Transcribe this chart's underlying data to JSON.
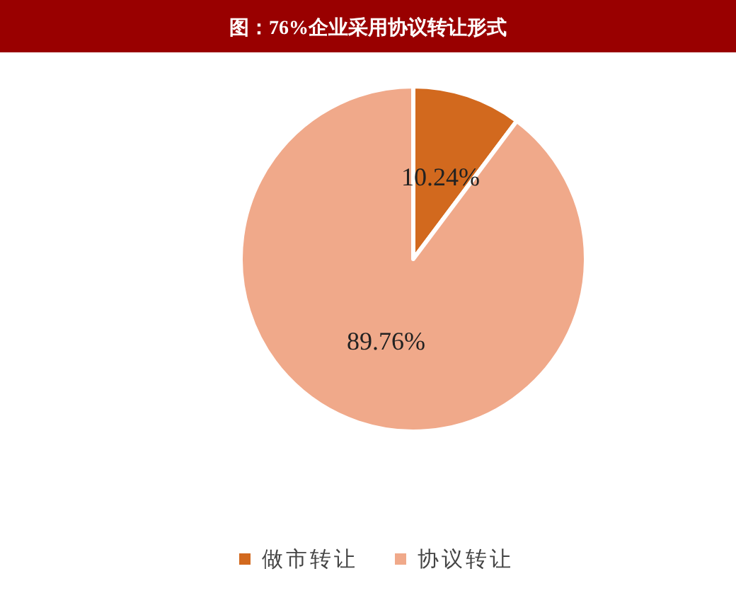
{
  "chart_data": {
    "type": "pie",
    "title": "图：76%企业采用协议转让形式",
    "categories": [
      "做市转让",
      "协议转让"
    ],
    "values": [
      10.24,
      89.76
    ],
    "colors": [
      "#d2691e",
      "#f0a98a"
    ],
    "value_labels": [
      "10.24%",
      "89.76%"
    ],
    "legend": "bottom"
  }
}
